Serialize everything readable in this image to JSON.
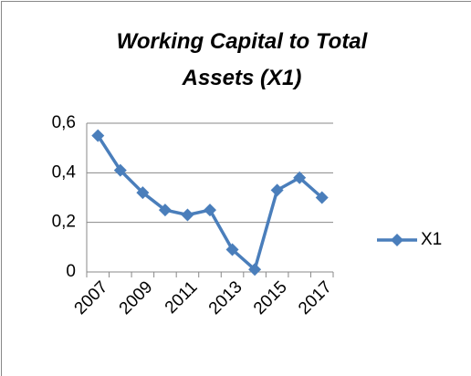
{
  "chart_data": {
    "type": "line",
    "title": "Working Capital to Total Assets (X1)",
    "categories": [
      "2007",
      null,
      "2009",
      null,
      "2011",
      null,
      "2013",
      null,
      "2015",
      null,
      "2017"
    ],
    "series": [
      {
        "name": "X1",
        "color": "#4a7ebb",
        "values": [
          0.55,
          0.41,
          0.32,
          0.25,
          0.23,
          0.25,
          0.09,
          0.01,
          0.33,
          0.38,
          0.3
        ]
      }
    ],
    "ylim": [
      0,
      0.6
    ],
    "yticks": [
      0,
      {
        "value": 0.2,
        "label": "0,2"
      },
      {
        "value": 0.4,
        "label": "0,4"
      },
      {
        "value": 0.6,
        "label": "0,6"
      }
    ],
    "grid": true,
    "legend": "right"
  }
}
